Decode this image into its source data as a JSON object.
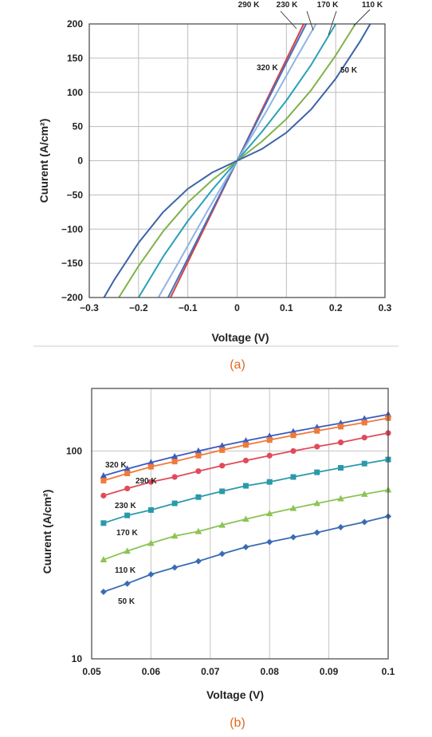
{
  "chart_data": [
    {
      "type": "line",
      "caption": "(a)",
      "xlabel": "Voltage (V)",
      "ylabel": "Cuurent (A/cm²)",
      "xlim": [
        -0.3,
        0.3
      ],
      "ylim": [
        -200,
        200
      ],
      "x_ticks": [
        -0.3,
        -0.2,
        -0.1,
        0,
        0.1,
        0.2,
        0.3
      ],
      "x_tick_labels": [
        "−0.3",
        "−0.2",
        "−0.1",
        "0",
        "0.1",
        "0.2",
        "0.3"
      ],
      "y_ticks": [
        -200,
        -150,
        -100,
        -50,
        0,
        50,
        100,
        150,
        200
      ],
      "y_tick_labels": [
        "−200",
        "−150",
        "−100",
        "−50",
        "0",
        "50",
        "100",
        "150",
        "200"
      ],
      "grid": true,
      "series": [
        {
          "name": "320 K",
          "color": "#d94040",
          "x": [
            -0.135,
            -0.1,
            -0.05,
            0,
            0.05,
            0.1,
            0.135
          ],
          "y": [
            -200,
            -148,
            -74,
            0,
            74,
            148,
            200
          ]
        },
        {
          "name": "290 K",
          "color": "#4472c4",
          "x": [
            -0.14,
            -0.1,
            -0.05,
            0,
            0.05,
            0.1,
            0.14
          ],
          "y": [
            -200,
            -143,
            -71,
            0,
            71,
            143,
            200
          ]
        },
        {
          "name": "230 K",
          "color": "#8fb4e3",
          "x": [
            -0.16,
            -0.12,
            -0.06,
            0,
            0.06,
            0.12,
            0.16
          ],
          "y": [
            -200,
            -150,
            -73,
            0,
            73,
            150,
            200
          ]
        },
        {
          "name": "170 K",
          "color": "#2aa0b8",
          "x": [
            -0.2,
            -0.15,
            -0.1,
            -0.05,
            0,
            0.05,
            0.1,
            0.15,
            0.2
          ],
          "y": [
            -200,
            -140,
            -88,
            -42,
            0,
            42,
            88,
            140,
            200
          ]
        },
        {
          "name": "110 K",
          "color": "#7fb24a",
          "x": [
            -0.24,
            -0.2,
            -0.15,
            -0.1,
            -0.05,
            0,
            0.05,
            0.1,
            0.15,
            0.2,
            0.24
          ],
          "y": [
            -200,
            -154,
            -103,
            -61,
            -28,
            0,
            28,
            61,
            103,
            154,
            200
          ]
        },
        {
          "name": "50 K",
          "color": "#3b63a8",
          "x": [
            -0.27,
            -0.25,
            -0.2,
            -0.15,
            -0.1,
            -0.05,
            0,
            0.05,
            0.1,
            0.15,
            0.2,
            0.25,
            0.27
          ],
          "y": [
            -200,
            -175,
            -120,
            -75,
            -41,
            -17,
            0,
            17,
            41,
            75,
            120,
            175,
            200
          ]
        }
      ],
      "annotations": [
        {
          "text": "290 K",
          "series": "290 K"
        },
        {
          "text": "230 K",
          "series": "230 K"
        },
        {
          "text": "170 K",
          "series": "170 K"
        },
        {
          "text": "110 K",
          "series": "110 K"
        },
        {
          "text": "320 K",
          "series": "320 K"
        },
        {
          "text": "50 K",
          "series": "50 K"
        }
      ]
    },
    {
      "type": "scatter",
      "caption": "(b)",
      "xlabel": "Voltage (V)",
      "ylabel": "Cuurent (A/cm²)",
      "xlim": [
        0.05,
        0.1
      ],
      "ylim": [
        10,
        200
      ],
      "yscale": "log",
      "x_ticks": [
        0.05,
        0.06,
        0.07,
        0.08,
        0.09,
        0.1
      ],
      "x_tick_labels": [
        "0.05",
        "0.06",
        "0.07",
        "0.08",
        "0.09",
        "0.1"
      ],
      "y_ticks": [
        10,
        100
      ],
      "y_tick_labels": [
        "10",
        "100"
      ],
      "grid": true,
      "series": [
        {
          "name": "320 K",
          "color": "#3b5bbf",
          "marker": "triangle",
          "x": [
            0.052,
            0.056,
            0.06,
            0.064,
            0.068,
            0.072,
            0.076,
            0.08,
            0.084,
            0.088,
            0.092,
            0.096,
            0.1
          ],
          "y": [
            76,
            82,
            88,
            94,
            100,
            106,
            112,
            118,
            124,
            130,
            136,
            143,
            150
          ]
        },
        {
          "name": "290 K",
          "color": "#f07a3a",
          "marker": "square",
          "x": [
            0.052,
            0.056,
            0.06,
            0.064,
            0.068,
            0.072,
            0.076,
            0.08,
            0.084,
            0.088,
            0.092,
            0.096,
            0.1
          ],
          "y": [
            72,
            78,
            84,
            89,
            95,
            101,
            107,
            113,
            119,
            125,
            131,
            137,
            144
          ]
        },
        {
          "name": "230 K",
          "color": "#e04b5a",
          "marker": "circle",
          "x": [
            0.052,
            0.056,
            0.06,
            0.064,
            0.068,
            0.072,
            0.076,
            0.08,
            0.084,
            0.088,
            0.092,
            0.096,
            0.1
          ],
          "y": [
            61,
            66,
            71,
            75,
            80,
            85,
            90,
            95,
            100,
            105,
            110,
            116,
            122
          ]
        },
        {
          "name": "170 K",
          "color": "#2a9aaa",
          "marker": "square",
          "x": [
            0.052,
            0.056,
            0.06,
            0.064,
            0.068,
            0.072,
            0.076,
            0.08,
            0.084,
            0.088,
            0.092,
            0.096,
            0.1
          ],
          "y": [
            45,
            49,
            52,
            56,
            60,
            64,
            68,
            71,
            75,
            79,
            83,
            87,
            91
          ]
        },
        {
          "name": "110 K",
          "color": "#8cc454",
          "marker": "triangle",
          "x": [
            0.052,
            0.056,
            0.06,
            0.064,
            0.068,
            0.072,
            0.076,
            0.08,
            0.084,
            0.088,
            0.092,
            0.096,
            0.1
          ],
          "y": [
            30,
            33,
            36,
            39,
            41,
            44,
            47,
            50,
            53,
            56,
            59,
            62,
            65
          ]
        },
        {
          "name": "50 K",
          "color": "#3a6cb3",
          "marker": "diamond",
          "x": [
            0.052,
            0.056,
            0.06,
            0.064,
            0.068,
            0.072,
            0.076,
            0.08,
            0.084,
            0.088,
            0.092,
            0.096,
            0.1
          ],
          "y": [
            21,
            23,
            25.5,
            27.5,
            29.5,
            32,
            34.5,
            36.5,
            38.5,
            40.5,
            43,
            45.5,
            48.5
          ]
        }
      ],
      "annotations": [
        {
          "text": "320 K",
          "series": "320 K"
        },
        {
          "text": "290 K",
          "series": "290 K"
        },
        {
          "text": "230 K",
          "series": "230 K"
        },
        {
          "text": "170 K",
          "series": "170 K"
        },
        {
          "text": "110 K",
          "series": "110 K"
        },
        {
          "text": "50 K",
          "series": "50 K"
        }
      ]
    }
  ]
}
